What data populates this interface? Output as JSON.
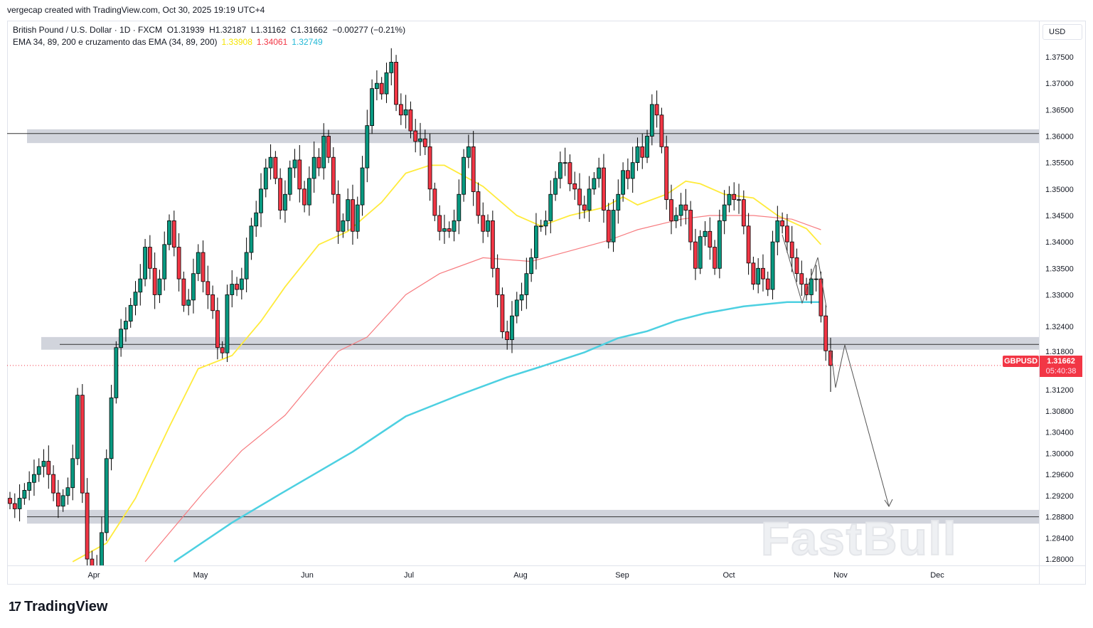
{
  "credit": "vergecap created with TradingView.com, Oct 30, 2025 19:19 UTC+4",
  "legend": {
    "symbol_line": "British Pound / U.S. Dollar · 1D · FXCM  O1.31939  H1.32187  L1.31162  C1.31662  −0.00277 (−0.21%)",
    "indicator": "EMA 34, 89, 200 e cruzamento das EMA (34, 89, 200)",
    "ema34_value": "1.33908",
    "ema89_value": "1.34061",
    "ema200_value": "1.32749"
  },
  "currency_button": "USD",
  "price_tag": {
    "symbol": "GBPUSD",
    "price": "1.31662",
    "countdown": "05:40:38"
  },
  "logo_text": "TradingView",
  "watermark": "FastBull",
  "colors": {
    "up": "#089981",
    "down": "#f23645",
    "ema34": "#ffeb3b",
    "ema89": "#f77c80",
    "ema200": "#4dd0e1",
    "zone": "#d1d4dc"
  },
  "chart_data": {
    "type": "candlestick",
    "symbol": "GBPUSD",
    "interval": "1D",
    "ylim": [
      1.2795,
      1.3785
    ],
    "price_axis_labels": [
      "1.37500",
      "1.37000",
      "1.36500",
      "1.36000",
      "1.35500",
      "1.35000",
      "1.34500",
      "1.34000",
      "1.33500",
      "1.33000",
      "1.32400",
      "1.31800",
      "1.31200",
      "1.30800",
      "1.30400",
      "1.30000",
      "1.29600",
      "1.29200",
      "1.28800",
      "1.28400",
      "1.28000"
    ],
    "time_axis_labels": [
      "Apr",
      "May",
      "Jun",
      "Jul",
      "Aug",
      "Sep",
      "Oct",
      "Nov",
      "Dec"
    ],
    "closes": [
      1.2905,
      1.2895,
      1.2915,
      1.293,
      1.2945,
      1.296,
      1.2975,
      1.2985,
      1.296,
      1.2925,
      1.29,
      1.292,
      1.2935,
      1.299,
      1.311,
      1.2925,
      1.28,
      1.276,
      1.2785,
      1.285,
      1.299,
      1.3105,
      1.32,
      1.3235,
      1.325,
      1.328,
      1.3305,
      1.333,
      1.339,
      1.335,
      1.33,
      1.333,
      1.3395,
      1.344,
      1.339,
      1.333,
      1.328,
      1.329,
      1.334,
      1.338,
      1.3325,
      1.33,
      1.327,
      1.32,
      1.319,
      1.33,
      1.332,
      1.331,
      1.333,
      1.338,
      1.343,
      1.3455,
      1.35,
      1.354,
      1.356,
      1.352,
      1.346,
      1.349,
      1.354,
      1.3555,
      1.35,
      1.347,
      1.352,
      1.356,
      1.354,
      1.36,
      1.356,
      1.349,
      1.342,
      1.344,
      1.348,
      1.342,
      1.347,
      1.354,
      1.362,
      1.369,
      1.37,
      1.368,
      1.372,
      1.374,
      1.366,
      1.364,
      1.365,
      1.361,
      1.359,
      1.3595,
      1.358,
      1.35,
      1.345,
      1.342,
      1.3425,
      1.342,
      1.344,
      1.349,
      1.356,
      1.358,
      1.3495,
      1.345,
      1.342,
      1.344,
      1.335,
      1.33,
      1.323,
      1.3215,
      1.326,
      1.329,
      1.33,
      1.334,
      1.337,
      1.343,
      1.343,
      1.344,
      1.349,
      1.352,
      1.355,
      1.355,
      1.351,
      1.35,
      1.347,
      1.346,
      1.35,
      1.352,
      1.354,
      1.346,
      1.34,
      1.346,
      1.349,
      1.3535,
      1.352,
      1.355,
      1.358,
      1.356,
      1.36,
      1.366,
      1.364,
      1.358,
      1.348,
      1.344,
      1.345,
      1.347,
      1.346,
      1.34,
      1.335,
      1.341,
      1.342,
      1.339,
      1.335,
      1.344,
      1.347,
      1.349,
      1.348,
      1.348,
      1.343,
      1.336,
      1.332,
      1.335,
      1.333,
      1.331,
      1.34,
      1.344,
      1.343,
      1.34,
      1.337,
      1.334,
      1.332,
      1.33,
      1.333,
      1.333,
      1.326,
      1.3194,
      1.31662
    ],
    "last_bar": {
      "open": 1.31939,
      "high": 1.32187,
      "low": 1.31162,
      "close": 1.31662
    },
    "ema34": [
      [
        13,
        1.2795
      ],
      [
        20,
        1.283
      ],
      [
        26,
        1.2915
      ],
      [
        33,
        1.305
      ],
      [
        39,
        1.316
      ],
      [
        46,
        1.3185
      ],
      [
        52,
        1.325
      ],
      [
        57,
        1.3315
      ],
      [
        64,
        1.3395
      ],
      [
        70,
        1.342
      ],
      [
        77,
        1.3475
      ],
      [
        82,
        1.353
      ],
      [
        87,
        1.3545
      ],
      [
        90,
        1.3545
      ],
      [
        98,
        1.3505
      ],
      [
        105,
        1.345
      ],
      [
        110,
        1.343
      ],
      [
        116,
        1.345
      ],
      [
        123,
        1.3465
      ],
      [
        127,
        1.3485
      ],
      [
        130,
        1.347
      ],
      [
        136,
        1.349
      ],
      [
        140,
        1.3515
      ],
      [
        143,
        1.351
      ],
      [
        148,
        1.349
      ],
      [
        154,
        1.3483
      ],
      [
        159,
        1.345
      ],
      [
        165,
        1.3425
      ],
      [
        168,
        1.3395
      ]
    ],
    "ema89": [
      [
        28,
        1.2795
      ],
      [
        40,
        1.2925
      ],
      [
        48,
        1.3005
      ],
      [
        57,
        1.3072
      ],
      [
        68,
        1.3193
      ],
      [
        74,
        1.322
      ],
      [
        82,
        1.33
      ],
      [
        89,
        1.334
      ],
      [
        98,
        1.337
      ],
      [
        108,
        1.3363
      ],
      [
        116,
        1.3383
      ],
      [
        124,
        1.3403
      ],
      [
        130,
        1.3423
      ],
      [
        139,
        1.3443
      ],
      [
        145,
        1.345
      ],
      [
        154,
        1.345
      ],
      [
        162,
        1.3443
      ],
      [
        168,
        1.3423
      ]
    ],
    "ema200": [
      [
        34,
        1.2795
      ],
      [
        46,
        1.2869
      ],
      [
        56,
        1.2923
      ],
      [
        71,
        1.3003
      ],
      [
        82,
        1.307
      ],
      [
        93,
        1.311
      ],
      [
        103,
        1.3144
      ],
      [
        110,
        1.3164
      ],
      [
        119,
        1.3191
      ],
      [
        126,
        1.3218
      ],
      [
        132,
        1.3231
      ],
      [
        138,
        1.3251
      ],
      [
        144,
        1.3265
      ],
      [
        152,
        1.3278
      ],
      [
        161,
        1.3286
      ],
      [
        168,
        1.3286
      ]
    ],
    "zones": [
      {
        "top": 1.3613,
        "bottom": 1.3587,
        "line": 1.3605
      },
      {
        "top": 1.322,
        "bottom": 1.3196,
        "line": 1.3206
      },
      {
        "top": 1.2893,
        "bottom": 1.2867,
        "line": 1.288
      }
    ]
  }
}
